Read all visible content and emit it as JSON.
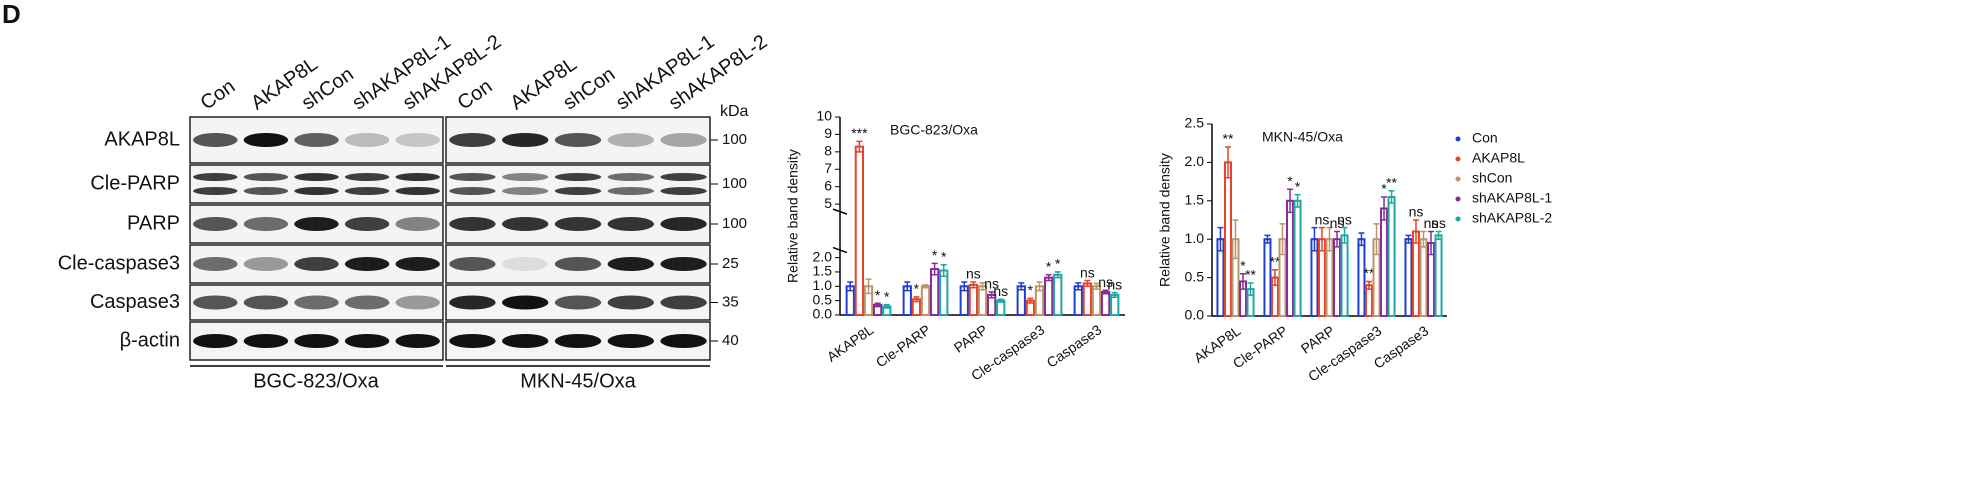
{
  "panel_label": "D",
  "blot": {
    "lanes": [
      "Con",
      "AKAP8L",
      "shCon",
      "shAKAP8L-1",
      "shAKAP8L-2",
      "Con",
      "AKAP8L",
      "shCon",
      "shAKAP8L-1",
      "shAKAP8L-2"
    ],
    "kda_header": "kDa",
    "rows": [
      {
        "label": "AKAP8L",
        "kda": "100"
      },
      {
        "label": "Cle-PARP",
        "kda": "100"
      },
      {
        "label": "PARP",
        "kda": "100"
      },
      {
        "label": "Cle-caspase3",
        "kda": "25"
      },
      {
        "label": "Caspase3",
        "kda": "35"
      },
      {
        "label": "β-actin",
        "kda": "40"
      }
    ],
    "groups": [
      "BGC-823/Oxa",
      "MKN-45/Oxa"
    ]
  },
  "chart_data": [
    {
      "type": "bar",
      "title": "BGC-823/Oxa",
      "y_label": "Relative  band density",
      "categories": [
        "AKAP8L",
        "Cle-PARP",
        "PARP",
        "Cle-caspase3",
        "Caspase3"
      ],
      "ylim": [
        0,
        10
      ],
      "axis_break": [
        2,
        5
      ],
      "yticks": [
        {
          "value": 0,
          "label": "0.0"
        },
        0.5,
        {
          "value": 1,
          "label": "1.0"
        },
        1.5,
        {
          "value": 2,
          "label": "2.0"
        },
        5,
        6,
        7,
        8,
        9,
        10
      ],
      "grid": false,
      "legend": false,
      "series": [
        {
          "name": "Con",
          "color": "#1f3fd0",
          "values": [
            1,
            1,
            1,
            1,
            1
          ],
          "errors": [
            0.15,
            0.15,
            0.15,
            0.12,
            0.12
          ],
          "annotations": [
            null,
            null,
            null,
            null,
            null
          ]
        },
        {
          "name": "AKAP8L",
          "color": "#e8402a",
          "values": [
            8.3,
            0.55,
            1.05,
            0.5,
            1.1
          ],
          "errors": [
            0.3,
            0.08,
            0.1,
            0.08,
            0.1
          ],
          "annotations": [
            "***",
            "*",
            "ns",
            "*",
            "ns"
          ]
        },
        {
          "name": "shCon",
          "color": "#b8956a",
          "values": [
            1,
            1,
            1,
            1,
            1
          ],
          "errors": [
            0.25,
            0.05,
            0.12,
            0.15,
            0.1
          ],
          "annotations": [
            null,
            null,
            null,
            null,
            null
          ]
        },
        {
          "name": "shAKAP8L-1",
          "color": "#8a2a9a",
          "values": [
            0.35,
            1.6,
            0.7,
            1.3,
            0.8
          ],
          "errors": [
            0.06,
            0.2,
            0.1,
            0.1,
            0.06
          ],
          "annotations": [
            "*",
            "*",
            "ns",
            "*",
            "ns"
          ]
        },
        {
          "name": "shAKAP8L-2",
          "color": "#20a8a0",
          "values": [
            0.3,
            1.55,
            0.5,
            1.4,
            0.7
          ],
          "errors": [
            0.06,
            0.2,
            0.05,
            0.1,
            0.08
          ],
          "annotations": [
            "*",
            "*",
            "ns",
            "*",
            "ns"
          ]
        }
      ]
    },
    {
      "type": "bar",
      "title": "MKN-45/Oxa",
      "y_label": "Relative  band density",
      "categories": [
        "AKAP8L",
        "Cle-PARP",
        "PARP",
        "Cle-caspase3",
        "Caspase3"
      ],
      "ylim": [
        0,
        2.5
      ],
      "yticks": [
        {
          "value": 0,
          "label": "0.0"
        },
        0.5,
        {
          "value": 1,
          "label": "1.0"
        },
        1.5,
        {
          "value": 2,
          "label": "2.0"
        },
        2.5
      ],
      "grid": false,
      "legend": true,
      "series": [
        {
          "name": "Con",
          "color": "#1f3fd0",
          "values": [
            1,
            1,
            1,
            1,
            1
          ],
          "errors": [
            0.15,
            0.05,
            0.15,
            0.08,
            0.05
          ],
          "annotations": [
            null,
            null,
            null,
            null,
            null
          ]
        },
        {
          "name": "AKAP8L",
          "color": "#e8402a",
          "values": [
            2.0,
            0.5,
            1.0,
            0.4,
            1.1
          ],
          "errors": [
            0.2,
            0.1,
            0.15,
            0.05,
            0.15
          ],
          "annotations": [
            "**",
            "**",
            "ns",
            "**",
            "ns"
          ]
        },
        {
          "name": "shCon",
          "color": "#b8956a",
          "values": [
            1,
            1,
            1,
            1,
            1
          ],
          "errors": [
            0.25,
            0.2,
            0.15,
            0.2,
            0.1
          ],
          "annotations": [
            null,
            null,
            null,
            null,
            null
          ]
        },
        {
          "name": "shAKAP8L-1",
          "color": "#8a2a9a",
          "values": [
            0.45,
            1.5,
            1.0,
            1.4,
            0.95
          ],
          "errors": [
            0.1,
            0.15,
            0.1,
            0.15,
            0.15
          ],
          "annotations": [
            "*",
            "*",
            "ns",
            "*",
            "ns"
          ]
        },
        {
          "name": "shAKAP8L-2",
          "color": "#20a8a0",
          "values": [
            0.35,
            1.5,
            1.05,
            1.55,
            1.05
          ],
          "errors": [
            0.08,
            0.08,
            0.1,
            0.08,
            0.05
          ],
          "annotations": [
            "**",
            "*",
            "ns",
            "**",
            "ns"
          ]
        }
      ]
    }
  ]
}
